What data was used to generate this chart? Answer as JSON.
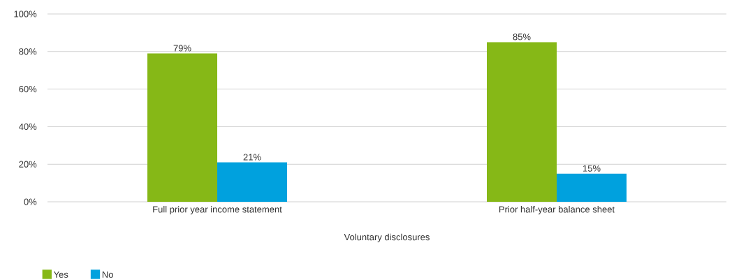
{
  "chart_data": {
    "type": "bar",
    "xlabel": "Voluntary disclosures",
    "categories": [
      "Full prior year income statement",
      "Prior half-year balance sheet"
    ],
    "series": [
      {
        "name": "Yes",
        "color": "#86b817",
        "values": [
          79,
          85
        ],
        "value_labels": [
          "79%",
          "85%"
        ]
      },
      {
        "name": "No",
        "color": "#00a1de",
        "values": [
          21,
          15
        ],
        "value_labels": [
          "21%",
          "15%"
        ]
      }
    ],
    "ylim": [
      0,
      100
    ],
    "yticks": [
      {
        "value": 0,
        "label": "0%"
      },
      {
        "value": 20,
        "label": "20%"
      },
      {
        "value": 40,
        "label": "40%"
      },
      {
        "value": 60,
        "label": "60%"
      },
      {
        "value": 80,
        "label": "80%"
      },
      {
        "value": 100,
        "label": "100%"
      }
    ],
    "grid": "y",
    "legend": "bottom left"
  }
}
